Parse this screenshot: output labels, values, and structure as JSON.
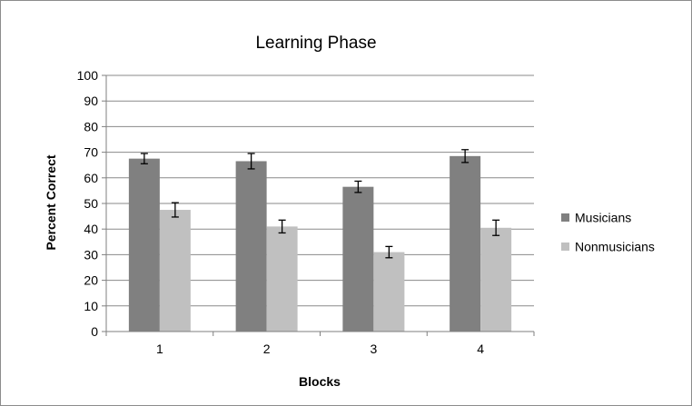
{
  "chart_data": {
    "type": "bar",
    "title": "Learning Phase",
    "xlabel": "Blocks",
    "ylabel": "Percent Correct",
    "categories": [
      "1",
      "2",
      "3",
      "4"
    ],
    "ylim": [
      0,
      100
    ],
    "yticks": [
      "0",
      "10",
      "20",
      "30",
      "40",
      "50",
      "60",
      "70",
      "80",
      "90",
      "100"
    ],
    "grid": true,
    "legend_position": "right",
    "series": [
      {
        "name": "Musicians",
        "color": "#808080",
        "values": [
          67.5,
          66.5,
          56.5,
          68.5
        ],
        "errors": [
          2,
          3,
          2.2,
          2.5
        ]
      },
      {
        "name": "Nonmusicians",
        "color": "#c0c0c0",
        "values": [
          47.5,
          41,
          31,
          40.5
        ],
        "errors": [
          2.8,
          2.5,
          2.2,
          3
        ]
      }
    ]
  }
}
